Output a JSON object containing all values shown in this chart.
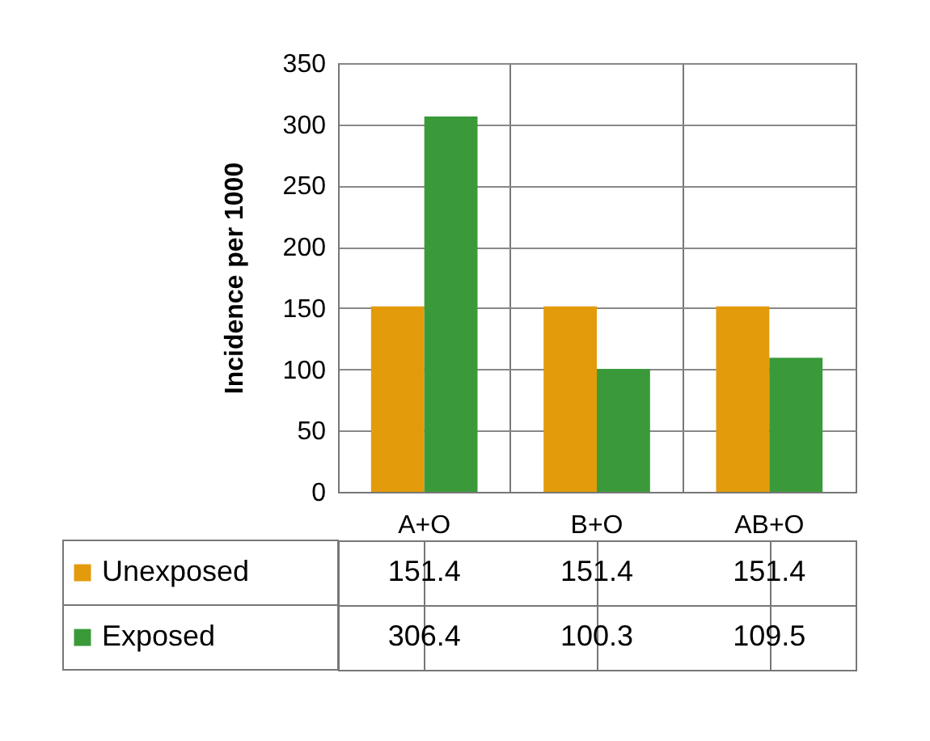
{
  "chart_data": {
    "type": "bar",
    "ylabel": "Incidence per 1000",
    "categories": [
      "A+O",
      "B+O",
      "AB+O"
    ],
    "series": [
      {
        "name": "Unexposed",
        "color": "#e39b0c",
        "values": [
          151.4,
          151.4,
          151.4
        ]
      },
      {
        "name": "Exposed",
        "color": "#3a9a3a",
        "values": [
          306.4,
          100.3,
          109.5
        ]
      }
    ],
    "ylim": [
      0,
      350
    ],
    "yticks": [
      0,
      50,
      100,
      150,
      200,
      250,
      300,
      350
    ],
    "grid": "y",
    "data_labels": true,
    "legend": "bottom left"
  }
}
